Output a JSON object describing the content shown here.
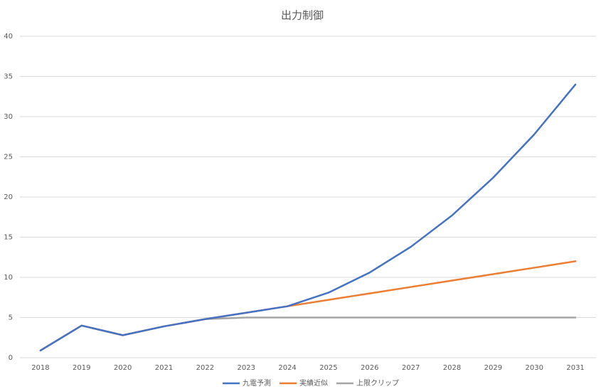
{
  "chart_data": {
    "type": "line",
    "title": "出力制御",
    "categories": [
      "2018",
      "2019",
      "2020",
      "2021",
      "2022",
      "2023",
      "2024",
      "2025",
      "2026",
      "2027",
      "2028",
      "2029",
      "2030",
      "2031"
    ],
    "series": [
      {
        "name": "九電予測",
        "color": "#4472c4",
        "values": [
          0.9,
          4.0,
          2.8,
          3.9,
          4.8,
          5.6,
          6.4,
          8.1,
          10.6,
          13.8,
          17.7,
          22.4,
          27.8,
          34.0
        ]
      },
      {
        "name": "実績近似",
        "color": "#ed7d31",
        "values": [
          0.9,
          4.0,
          2.8,
          3.9,
          4.8,
          5.6,
          6.4,
          7.2,
          8.0,
          8.8,
          9.6,
          10.4,
          11.2,
          12.0
        ]
      },
      {
        "name": "上限クリップ",
        "color": "#a5a5a5",
        "values": [
          0.9,
          4.0,
          2.8,
          3.9,
          4.8,
          5.0,
          5.0,
          5.0,
          5.0,
          5.0,
          5.0,
          5.0,
          5.0,
          5.0
        ]
      }
    ],
    "ylim": [
      0,
      40
    ],
    "yticks": [
      0,
      5,
      10,
      15,
      20,
      25,
      30,
      35,
      40
    ],
    "grid": true,
    "legend": "bottom"
  }
}
